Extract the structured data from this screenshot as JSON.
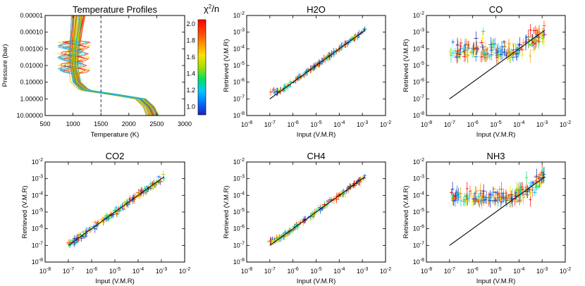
{
  "figure": {
    "colorbar": {
      "label_base": "χ",
      "label_sup": "2",
      "label_tail": "/n",
      "ticks": [
        "2.0",
        "1.8",
        "1.6",
        "1.4",
        "1.2",
        "1.0"
      ],
      "tick_values": [
        2.0,
        1.8,
        1.6,
        1.4,
        1.2,
        1.0
      ],
      "range": [
        0.9,
        2.05
      ],
      "colors": [
        "#2020c0",
        "#0070ff",
        "#00c8ff",
        "#00e060",
        "#a0e000",
        "#ffe000",
        "#ff9000",
        "#ff4000",
        "#ff0000"
      ]
    }
  },
  "chart_data": [
    {
      "type": "line",
      "panel": "temperature",
      "title": "Temperature Profiles",
      "xlabel": "Temperature (K)",
      "ylabel": "Pressure (bar)",
      "xlim": [
        500,
        3000
      ],
      "ylim": [
        1e-05,
        10
      ],
      "yscale": "log",
      "yreverse": true,
      "xticks": [
        "500",
        "1000",
        "1500",
        "2000",
        "2500",
        "3000"
      ],
      "xtick_values": [
        500,
        1000,
        1500,
        2000,
        2500,
        3000
      ],
      "yticks": [
        "0.00001",
        "0.00010",
        "0.00100",
        "0.01000",
        "0.10000",
        "1.00000",
        "10.00000"
      ],
      "ytick_values": [
        1e-05,
        0.0001,
        0.001,
        0.01,
        0.1,
        1,
        10
      ],
      "vline_x": 1500,
      "base_profile": {
        "pressure": [
          1e-05,
          0.0001,
          0.001,
          0.01,
          0.1,
          0.3,
          0.6,
          1,
          3,
          10
        ],
        "temperature": [
          1100,
          1060,
          1020,
          1000,
          1050,
          1200,
          1800,
          2200,
          2350,
          2420
        ]
      },
      "n_profiles": 60
    },
    {
      "type": "scatter",
      "panel": "H2O",
      "title": "H2O",
      "xlabel": "Input (V.M.R)",
      "ylabel": "Retrieved (V.M.R)",
      "xlim": [
        1e-08,
        0.01
      ],
      "ylim": [
        1e-08,
        0.01
      ],
      "xscale": "log",
      "yscale": "log",
      "xticks": [
        "10-8",
        "10-7",
        "10-6",
        "10-5",
        "10-4",
        "10-3",
        "10-2"
      ],
      "yticks": [
        "10-8",
        "10-7",
        "10-6",
        "10-5",
        "10-4",
        "10-3",
        "10-2"
      ],
      "one_to_one": [
        1e-07,
        0.0013
      ],
      "low_floor": 2.5e-07,
      "scatter_decades": 0.12,
      "n_points": 170
    },
    {
      "type": "scatter",
      "panel": "CO",
      "title": "CO",
      "xlabel": "Input (V.M.R)",
      "ylabel": "Retrieved (V.M.R)",
      "xlim": [
        1e-08,
        0.01
      ],
      "ylim": [
        1e-08,
        0.01
      ],
      "xscale": "log",
      "yscale": "log",
      "xticks": [
        "10-8",
        "10-7",
        "10-6",
        "10-5",
        "10-4",
        "10-3",
        "10-2"
      ],
      "yticks": [
        "10-8",
        "10-7",
        "10-6",
        "10-5",
        "10-4",
        "10-3",
        "10-2"
      ],
      "one_to_one": [
        1e-07,
        0.0013
      ],
      "low_floor": 3e-05,
      "scatter_decades": 0.85,
      "n_points": 200
    },
    {
      "type": "scatter",
      "panel": "CO2",
      "title": "CO2",
      "xlabel": "Input (V.M.R)",
      "ylabel": "Retrieved (V.M.R)",
      "xlim": [
        1e-08,
        0.01
      ],
      "ylim": [
        1e-08,
        0.01
      ],
      "xscale": "log",
      "yscale": "log",
      "xticks": [
        "10-8",
        "10-7",
        "10-6",
        "10-5",
        "10-4",
        "10-3",
        "10-2"
      ],
      "yticks": [
        "10-8",
        "10-7",
        "10-6",
        "10-5",
        "10-4",
        "10-3",
        "10-2"
      ],
      "one_to_one": [
        1e-07,
        0.0013
      ],
      "low_floor": 1e-07,
      "scatter_decades": 0.22,
      "n_points": 180
    },
    {
      "type": "scatter",
      "panel": "CH4",
      "title": "CH4",
      "xlabel": "Input (V.M.R)",
      "ylabel": "Retrieved (V.M.R)",
      "xlim": [
        1e-08,
        0.01
      ],
      "ylim": [
        1e-08,
        0.01
      ],
      "xscale": "log",
      "yscale": "log",
      "xticks": [
        "10-8",
        "10-7",
        "10-6",
        "10-5",
        "10-4",
        "10-3",
        "10-2"
      ],
      "yticks": [
        "10-8",
        "10-7",
        "10-6",
        "10-5",
        "10-4",
        "10-3",
        "10-2"
      ],
      "one_to_one": [
        1e-07,
        0.0013
      ],
      "low_floor": 1.5e-07,
      "scatter_decades": 0.15,
      "n_points": 170
    },
    {
      "type": "scatter",
      "panel": "NH3",
      "title": "NH3",
      "xlabel": "Input (V.M.R)",
      "ylabel": "Retrieved (V.M.R)",
      "xlim": [
        1e-08,
        0.01
      ],
      "ylim": [
        1e-08,
        0.01
      ],
      "xscale": "log",
      "yscale": "log",
      "xticks": [
        "10-8",
        "10-7",
        "10-6",
        "10-5",
        "10-4",
        "10-3",
        "10-2"
      ],
      "yticks": [
        "10-8",
        "10-7",
        "10-6",
        "10-5",
        "10-4",
        "10-3",
        "10-2"
      ],
      "one_to_one": [
        1e-07,
        0.0013
      ],
      "low_floor": 4e-05,
      "scatter_decades": 0.6,
      "n_points": 200
    }
  ]
}
